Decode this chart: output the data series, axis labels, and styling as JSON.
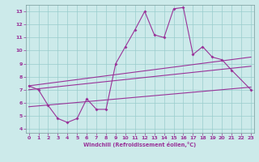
{
  "title": "",
  "xlabel": "Windchill (Refroidissement éolien,°C)",
  "bg_color": "#cceaea",
  "line_color": "#993399",
  "x_data": [
    0,
    1,
    2,
    3,
    4,
    5,
    6,
    7,
    8,
    9,
    10,
    11,
    12,
    13,
    14,
    15,
    16,
    17,
    18,
    19,
    20,
    21,
    23
  ],
  "y_main": [
    7.3,
    7.0,
    5.8,
    4.8,
    4.5,
    4.8,
    6.3,
    5.5,
    5.5,
    9.0,
    10.3,
    11.6,
    13.0,
    11.2,
    11.0,
    13.2,
    13.3,
    9.7,
    10.3,
    9.5,
    9.3,
    8.5,
    7.0
  ],
  "reg_line1_x": [
    0,
    23
  ],
  "reg_line1_y": [
    7.3,
    9.5
  ],
  "reg_line2_x": [
    0,
    23
  ],
  "reg_line2_y": [
    7.0,
    8.8
  ],
  "reg_line3_x": [
    0,
    23
  ],
  "reg_line3_y": [
    5.7,
    7.2
  ],
  "xlim": [
    -0.3,
    23.3
  ],
  "ylim": [
    3.7,
    13.5
  ],
  "yticks": [
    4,
    5,
    6,
    7,
    8,
    9,
    10,
    11,
    12,
    13
  ],
  "xticks": [
    0,
    1,
    2,
    3,
    4,
    5,
    6,
    7,
    8,
    9,
    10,
    11,
    12,
    13,
    14,
    15,
    16,
    17,
    18,
    19,
    20,
    21,
    22,
    23
  ]
}
